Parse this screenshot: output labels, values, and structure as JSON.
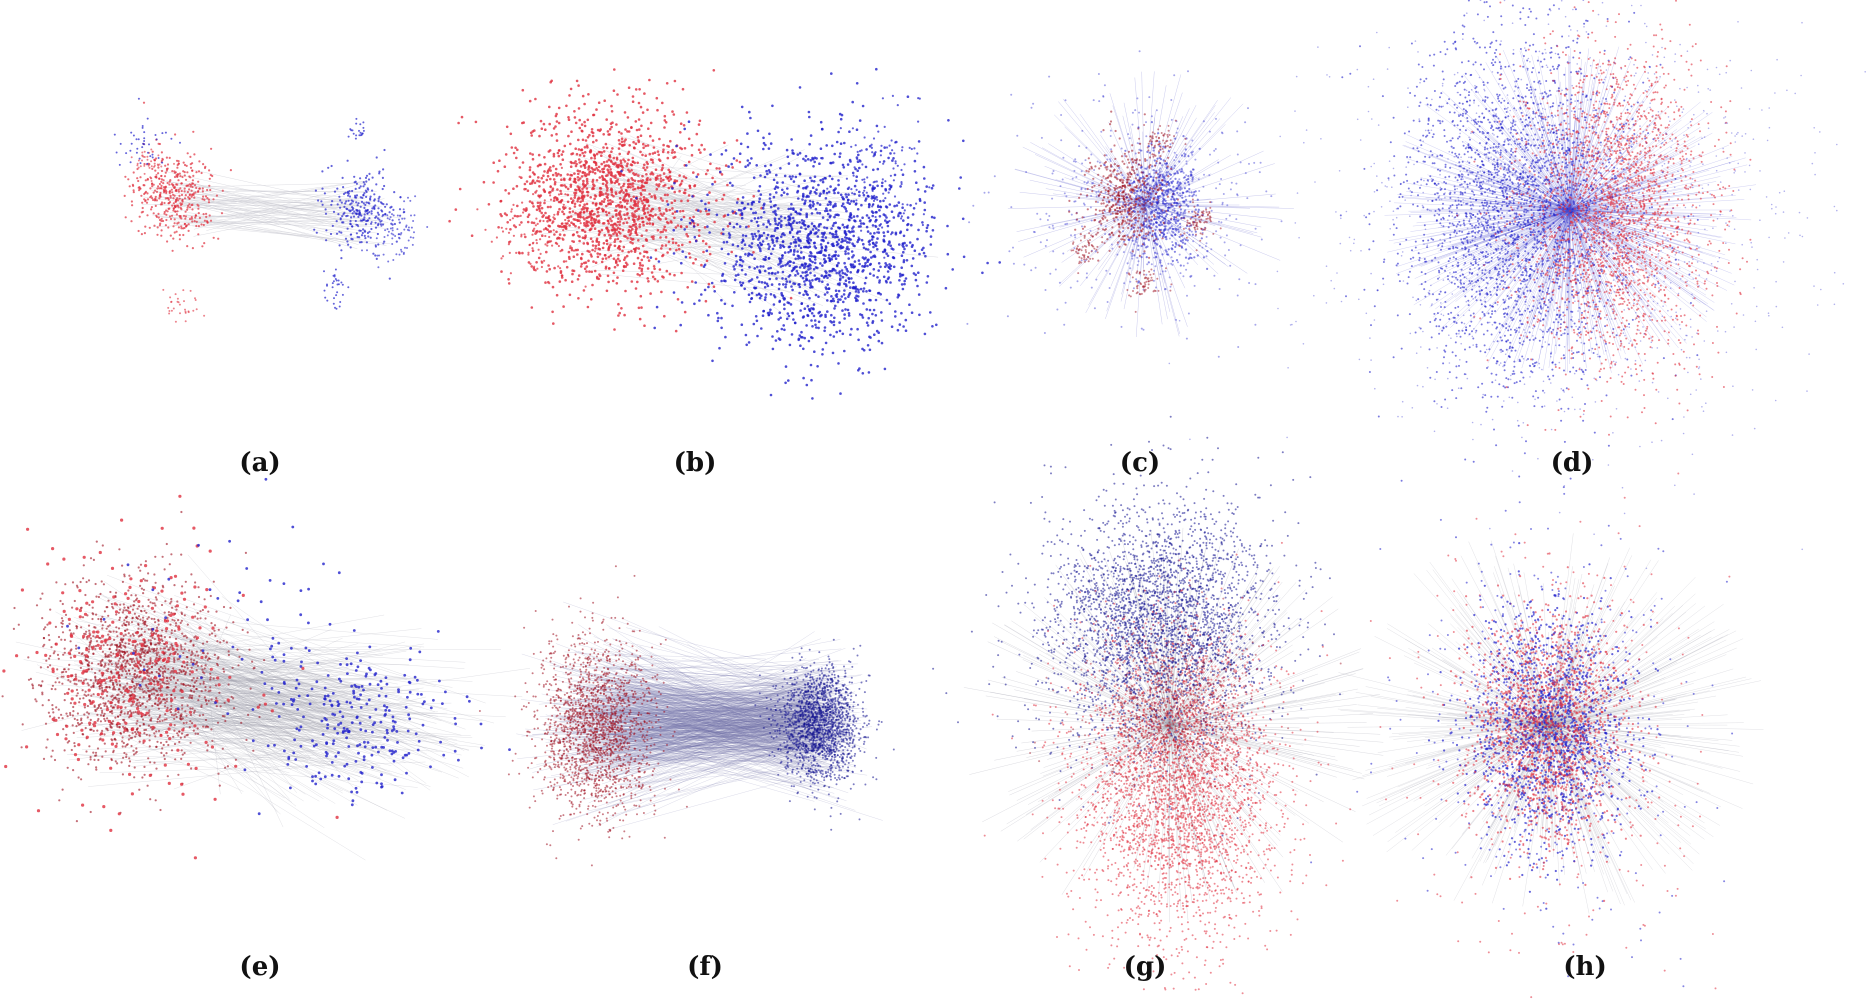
{
  "colors": {
    "red": "#e0303f",
    "blue": "#2222cc",
    "dark_red": "#9e1020",
    "dark_blue": "#121290",
    "edge_gray": "#c8c8d0"
  },
  "panels": [
    {
      "id": "a",
      "caption": "(a)",
      "style": "two-sparse"
    },
    {
      "id": "b",
      "caption": "(b)",
      "style": "two-dense"
    },
    {
      "id": "c",
      "caption": "(c)",
      "style": "mixed-small"
    },
    {
      "id": "d",
      "caption": "(d)",
      "style": "split-large"
    },
    {
      "id": "e",
      "caption": "(e)",
      "style": "two-edges"
    },
    {
      "id": "f",
      "caption": "(f)",
      "style": "two-edges-wide"
    },
    {
      "id": "g",
      "caption": "(g)",
      "style": "vertical-split"
    },
    {
      "id": "h",
      "caption": "(h)",
      "style": "fully-mixed"
    }
  ]
}
